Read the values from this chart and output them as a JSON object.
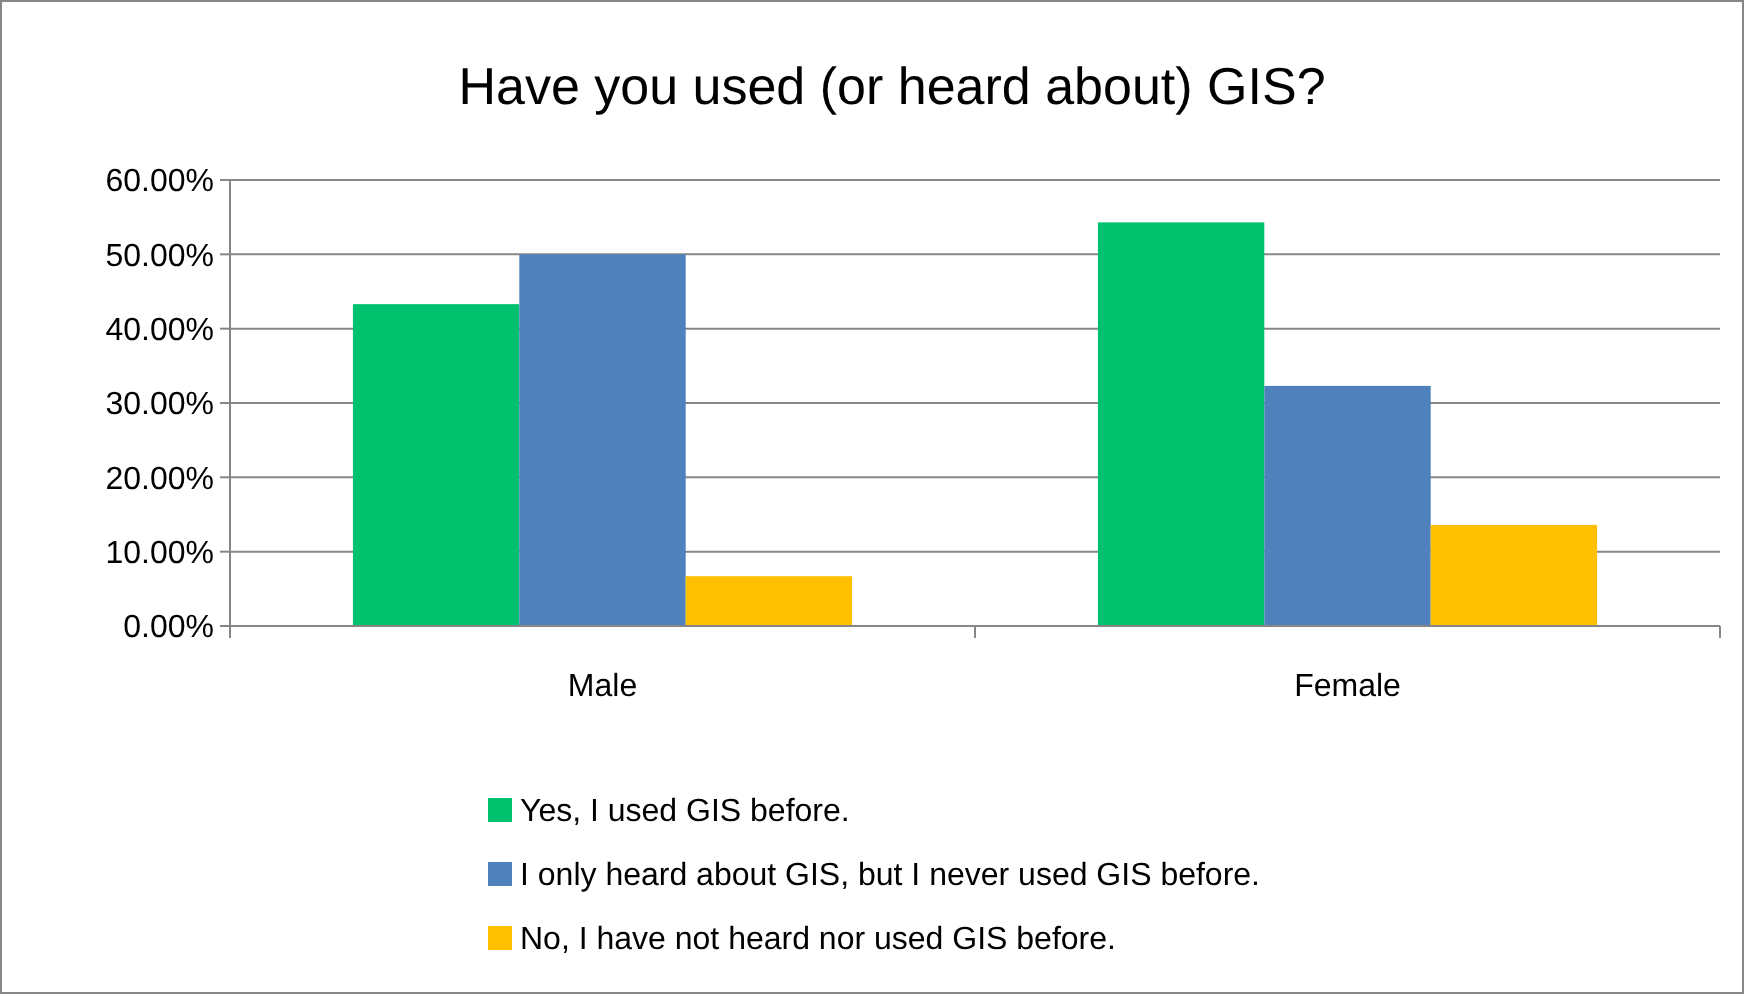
{
  "chart_data": {
    "type": "bar",
    "title": "Have you used (or heard about) GIS?",
    "categories": [
      "Male",
      "Female"
    ],
    "series": [
      {
        "name": "Yes, I used GIS before.",
        "color": "#00c16e",
        "values": [
          43.3,
          54.3
        ]
      },
      {
        "name": "I only heard about GIS, but I never used GIS before.",
        "color": "#4f81bd",
        "values": [
          50,
          32.3
        ]
      },
      {
        "name": "No, I have not heard nor used GIS before.",
        "color": "#ffc000",
        "values": [
          6.7,
          13.6
        ]
      }
    ],
    "ylim": [
      0,
      60
    ],
    "yticks": [
      {
        "value": 0,
        "label": "0.00%"
      },
      {
        "value": 10,
        "label": "10.00%"
      },
      {
        "value": 20,
        "label": "20.00%"
      },
      {
        "value": 30,
        "label": "30.00%"
      },
      {
        "value": 40,
        "label": "40.00%"
      },
      {
        "value": 50,
        "label": "50.00%"
      },
      {
        "value": 60,
        "label": "60.00%"
      }
    ],
    "grid": "y",
    "legend": "bottom"
  }
}
